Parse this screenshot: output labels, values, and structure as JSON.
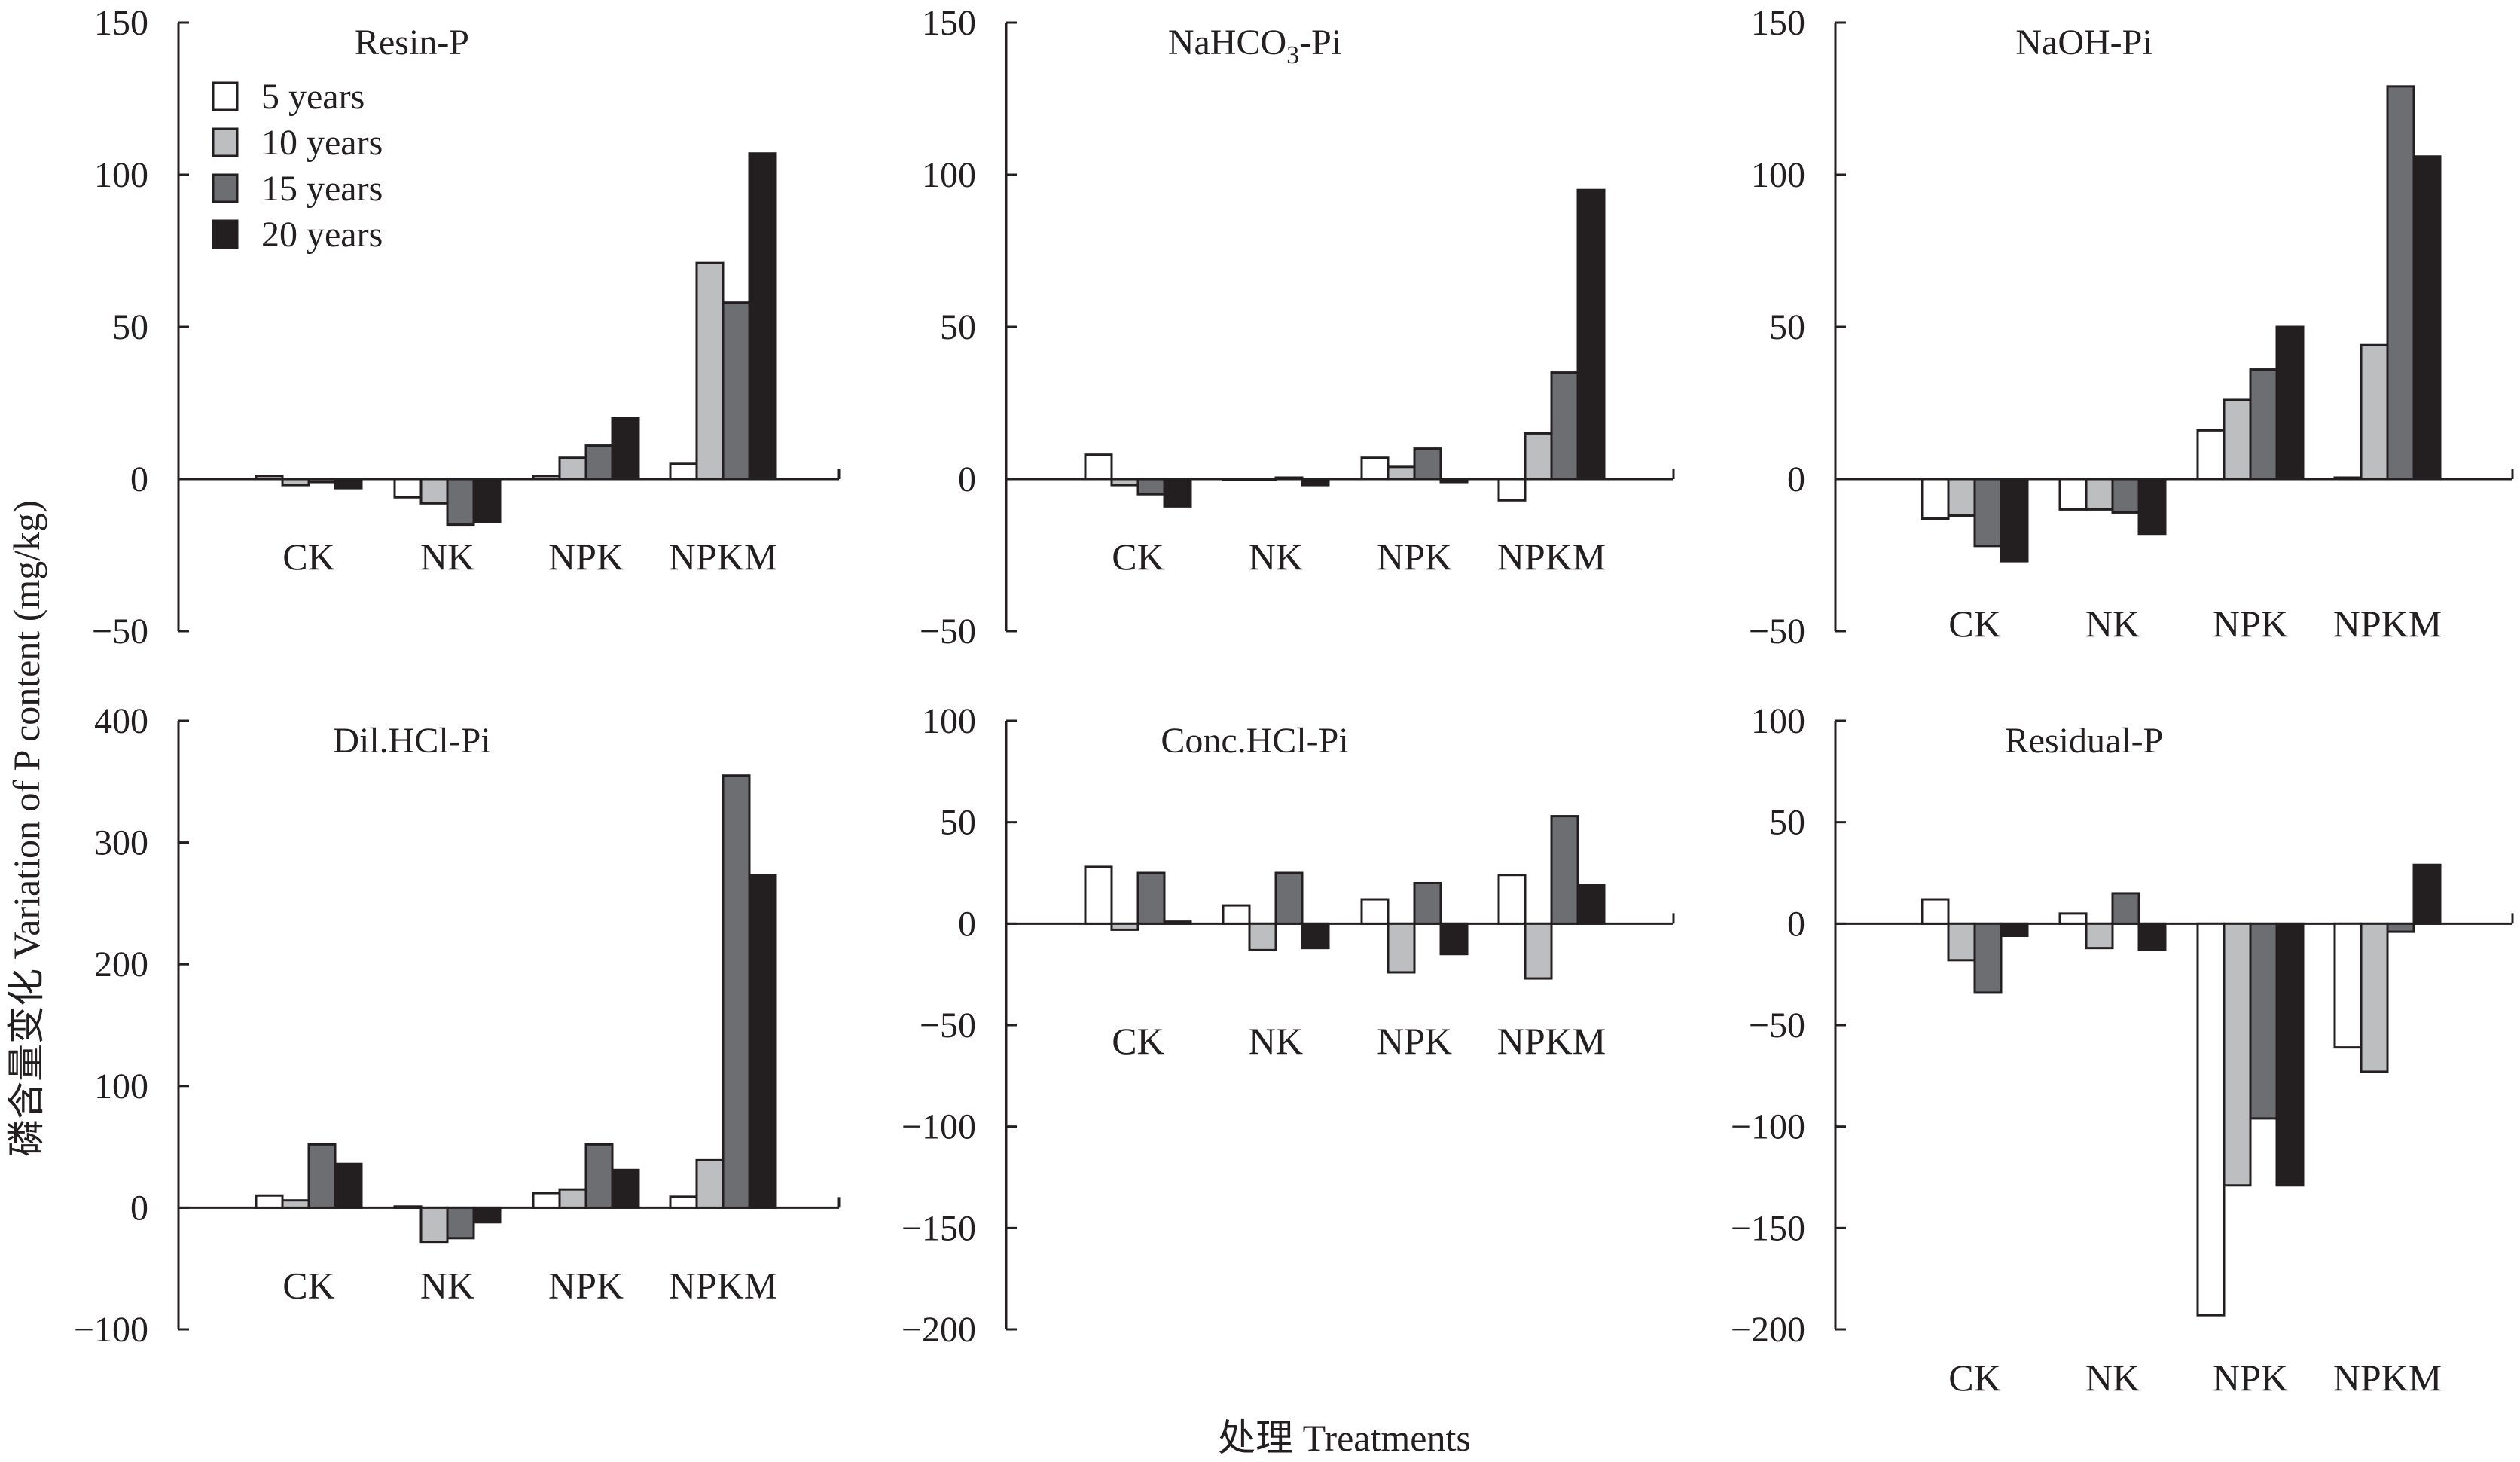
{
  "figure": {
    "y_label": "磷含量变化 Variation of P content (mg/kg)",
    "x_label": "处理 Treatments"
  },
  "colors": {
    "5 years": "#ffffff",
    "10 years": "#bcbec0",
    "15 years": "#6d6e71",
    "20 years": "#231f20",
    "axis": "#231f20"
  },
  "chart_data": [
    {
      "type": "bar",
      "title": "Resin-P",
      "categories": [
        "CK",
        "NK",
        "NPK",
        "NPKM"
      ],
      "series": [
        {
          "name": "5 years",
          "values": [
            1,
            -6,
            1,
            5
          ]
        },
        {
          "name": "10 years",
          "values": [
            -2,
            -8,
            7,
            71
          ]
        },
        {
          "name": "15 years",
          "values": [
            -1,
            -15,
            11,
            58
          ]
        },
        {
          "name": "20 years",
          "values": [
            -3,
            -14,
            20,
            107
          ]
        }
      ],
      "ylim": [
        -50,
        150
      ],
      "yticks": [
        "150",
        "100",
        "50",
        "0",
        "−50"
      ],
      "legend": "top-left"
    },
    {
      "type": "bar",
      "title": "NaHCO3-Pi",
      "title_parts": [
        "NaHCO",
        "3",
        "-Pi"
      ],
      "categories": [
        "CK",
        "NK",
        "NPK",
        "NPKM"
      ],
      "series": [
        {
          "name": "5 years",
          "values": [
            8,
            0,
            7,
            -7
          ]
        },
        {
          "name": "10 years",
          "values": [
            -2,
            0,
            4,
            15
          ]
        },
        {
          "name": "15 years",
          "values": [
            -5,
            0.5,
            10,
            35
          ]
        },
        {
          "name": "20 years",
          "values": [
            -9,
            -2,
            -1,
            95
          ]
        }
      ],
      "ylim": [
        -50,
        150
      ],
      "yticks": [
        "150",
        "100",
        "50",
        "0",
        "−50"
      ]
    },
    {
      "type": "bar",
      "title": "NaOH-Pi",
      "categories": [
        "CK",
        "NK",
        "NPK",
        "NPKM"
      ],
      "series": [
        {
          "name": "5 years",
          "values": [
            -13,
            -10,
            16,
            0.5
          ]
        },
        {
          "name": "10 years",
          "values": [
            -12,
            -10,
            26,
            44
          ]
        },
        {
          "name": "15 years",
          "values": [
            -22,
            -11,
            36,
            129
          ]
        },
        {
          "name": "20 years",
          "values": [
            -27,
            -18,
            50,
            106
          ]
        }
      ],
      "ylim": [
        -50,
        150
      ],
      "yticks": [
        "150",
        "100",
        "50",
        "0",
        "−50"
      ]
    },
    {
      "type": "bar",
      "title": "Dil.HCl-Pi",
      "categories": [
        "CK",
        "NK",
        "NPK",
        "NPKM"
      ],
      "series": [
        {
          "name": "5 years",
          "values": [
            10,
            1,
            12,
            9
          ]
        },
        {
          "name": "10 years",
          "values": [
            6,
            -28,
            15,
            39
          ]
        },
        {
          "name": "15 years",
          "values": [
            52,
            -25,
            52,
            355
          ]
        },
        {
          "name": "20 years",
          "values": [
            36,
            -12,
            31,
            273
          ]
        }
      ],
      "ylim": [
        -100,
        400
      ],
      "yticks": [
        "400",
        "300",
        "200",
        "100",
        "0",
        "−100"
      ]
    },
    {
      "type": "bar",
      "title": "Conc.HCl-Pi",
      "categories": [
        "CK",
        "NK",
        "NPK",
        "NPKM"
      ],
      "series": [
        {
          "name": "5 years",
          "values": [
            28,
            9,
            12,
            24
          ]
        },
        {
          "name": "10 years",
          "values": [
            -3,
            -13,
            -24,
            -27
          ]
        },
        {
          "name": "15 years",
          "values": [
            25,
            25,
            20,
            53
          ]
        },
        {
          "name": "20 years",
          "values": [
            1,
            -12,
            -15,
            19
          ]
        }
      ],
      "ylim": [
        -200,
        100
      ],
      "yticks": [
        "100",
        "50",
        "0",
        "−50",
        "−100",
        "−150",
        "−200"
      ]
    },
    {
      "type": "bar",
      "title": "Residual-P",
      "categories": [
        "CK",
        "NK",
        "NPK",
        "NPKM"
      ],
      "series": [
        {
          "name": "5 years",
          "values": [
            12,
            5,
            -193,
            -61
          ]
        },
        {
          "name": "10 years",
          "values": [
            -18,
            -12,
            -129,
            -73
          ]
        },
        {
          "name": "15 years",
          "values": [
            -34,
            15,
            -96,
            -4
          ]
        },
        {
          "name": "20 years",
          "values": [
            -6,
            -13,
            -129,
            29
          ]
        }
      ],
      "ylim": [
        -200,
        100
      ],
      "yticks": [
        "100",
        "50",
        "0",
        "−50",
        "−100",
        "−150",
        "−200"
      ]
    }
  ]
}
